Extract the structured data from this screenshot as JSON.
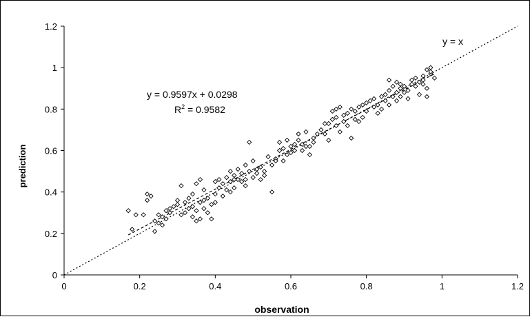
{
  "chart_data": {
    "type": "scatter",
    "xlabel": "observation",
    "ylabel": "prediction",
    "xlim": [
      0,
      1.2
    ],
    "ylim": [
      0,
      1.2
    ],
    "x_ticks": [
      "0",
      "0.2",
      "0.4",
      "0.6",
      "0.8",
      "1",
      "1.2"
    ],
    "y_ticks": [
      "0",
      "0.2",
      "0.4",
      "0.6",
      "0.8",
      "1",
      "1.2"
    ],
    "grid": false,
    "legend": "none",
    "marker": "diamond-open",
    "annotations": {
      "identity_label": "y = x",
      "regression_equation": "y = 0.9597x + 0.0298",
      "r_squared_prefix": "R",
      "r_squared_power": "2",
      "r_squared_value": " = 0.9582"
    },
    "lines": [
      {
        "kind": "identity",
        "slope": 1,
        "intercept": 0,
        "style": "dotted",
        "range": [
          0,
          1.2
        ]
      },
      {
        "kind": "regression",
        "slope": 0.9597,
        "intercept": 0.0298,
        "style": "dashed",
        "range": [
          0.17,
          0.98
        ]
      }
    ],
    "points": [
      [
        0.17,
        0.31
      ],
      [
        0.18,
        0.22
      ],
      [
        0.19,
        0.29
      ],
      [
        0.21,
        0.29
      ],
      [
        0.22,
        0.36
      ],
      [
        0.22,
        0.39
      ],
      [
        0.23,
        0.38
      ],
      [
        0.24,
        0.26
      ],
      [
        0.24,
        0.21
      ],
      [
        0.25,
        0.25
      ],
      [
        0.26,
        0.24
      ],
      [
        0.26,
        0.28
      ],
      [
        0.27,
        0.31
      ],
      [
        0.28,
        0.32
      ],
      [
        0.28,
        0.3
      ],
      [
        0.29,
        0.33
      ],
      [
        0.3,
        0.34
      ],
      [
        0.31,
        0.29
      ],
      [
        0.31,
        0.43
      ],
      [
        0.32,
        0.35
      ],
      [
        0.32,
        0.3
      ],
      [
        0.33,
        0.32
      ],
      [
        0.33,
        0.37
      ],
      [
        0.34,
        0.28
      ],
      [
        0.34,
        0.39
      ],
      [
        0.35,
        0.26
      ],
      [
        0.35,
        0.44
      ],
      [
        0.35,
        0.31
      ],
      [
        0.36,
        0.35
      ],
      [
        0.36,
        0.46
      ],
      [
        0.37,
        0.32
      ],
      [
        0.37,
        0.36
      ],
      [
        0.38,
        0.37
      ],
      [
        0.38,
        0.3
      ],
      [
        0.39,
        0.27
      ],
      [
        0.39,
        0.34
      ],
      [
        0.4,
        0.39
      ],
      [
        0.4,
        0.35
      ],
      [
        0.41,
        0.42
      ],
      [
        0.41,
        0.46
      ],
      [
        0.42,
        0.38
      ],
      [
        0.42,
        0.44
      ],
      [
        0.43,
        0.41
      ],
      [
        0.43,
        0.47
      ],
      [
        0.44,
        0.45
      ],
      [
        0.44,
        0.5
      ],
      [
        0.45,
        0.48
      ],
      [
        0.45,
        0.42
      ],
      [
        0.46,
        0.46
      ],
      [
        0.46,
        0.51
      ],
      [
        0.47,
        0.45
      ],
      [
        0.47,
        0.49
      ],
      [
        0.48,
        0.46
      ],
      [
        0.48,
        0.53
      ],
      [
        0.49,
        0.5
      ],
      [
        0.49,
        0.64
      ],
      [
        0.5,
        0.47
      ],
      [
        0.5,
        0.55
      ],
      [
        0.51,
        0.49
      ],
      [
        0.51,
        0.51
      ],
      [
        0.52,
        0.52
      ],
      [
        0.53,
        0.5
      ],
      [
        0.54,
        0.57
      ],
      [
        0.55,
        0.4
      ],
      [
        0.55,
        0.53
      ],
      [
        0.56,
        0.56
      ],
      [
        0.57,
        0.6
      ],
      [
        0.57,
        0.64
      ],
      [
        0.58,
        0.55
      ],
      [
        0.58,
        0.61
      ],
      [
        0.59,
        0.58
      ],
      [
        0.59,
        0.65
      ],
      [
        0.6,
        0.62
      ],
      [
        0.6,
        0.59
      ],
      [
        0.61,
        0.6
      ],
      [
        0.62,
        0.65
      ],
      [
        0.62,
        0.68
      ],
      [
        0.63,
        0.6
      ],
      [
        0.63,
        0.63
      ],
      [
        0.64,
        0.62
      ],
      [
        0.64,
        0.69
      ],
      [
        0.65,
        0.58
      ],
      [
        0.66,
        0.66
      ],
      [
        0.67,
        0.68
      ],
      [
        0.68,
        0.7
      ],
      [
        0.69,
        0.68
      ],
      [
        0.7,
        0.73
      ],
      [
        0.7,
        0.65
      ],
      [
        0.71,
        0.75
      ],
      [
        0.71,
        0.79
      ],
      [
        0.72,
        0.72
      ],
      [
        0.72,
        0.76
      ],
      [
        0.73,
        0.81
      ],
      [
        0.73,
        0.69
      ],
      [
        0.74,
        0.74
      ],
      [
        0.74,
        0.77
      ],
      [
        0.75,
        0.78
      ],
      [
        0.75,
        0.72
      ],
      [
        0.76,
        0.66
      ],
      [
        0.76,
        0.8
      ],
      [
        0.77,
        0.79
      ],
      [
        0.78,
        0.74
      ],
      [
        0.78,
        0.81
      ],
      [
        0.79,
        0.82
      ],
      [
        0.8,
        0.79
      ],
      [
        0.8,
        0.83
      ],
      [
        0.81,
        0.84
      ],
      [
        0.82,
        0.81
      ],
      [
        0.83,
        0.82
      ],
      [
        0.84,
        0.86
      ],
      [
        0.84,
        0.8
      ],
      [
        0.85,
        0.87
      ],
      [
        0.85,
        0.84
      ],
      [
        0.86,
        0.89
      ],
      [
        0.86,
        0.94
      ],
      [
        0.86,
        0.82
      ],
      [
        0.87,
        0.86
      ],
      [
        0.87,
        0.91
      ],
      [
        0.88,
        0.88
      ],
      [
        0.88,
        0.93
      ],
      [
        0.88,
        0.84
      ],
      [
        0.89,
        0.9
      ],
      [
        0.89,
        0.86
      ],
      [
        0.9,
        0.91
      ],
      [
        0.9,
        0.88
      ],
      [
        0.91,
        0.89
      ],
      [
        0.92,
        0.92
      ],
      [
        0.92,
        0.94
      ],
      [
        0.93,
        0.91
      ],
      [
        0.93,
        0.95
      ],
      [
        0.94,
        0.93
      ],
      [
        0.94,
        0.87
      ],
      [
        0.95,
        0.96
      ],
      [
        0.95,
        0.92
      ],
      [
        0.96,
        0.99
      ],
      [
        0.96,
        0.9
      ],
      [
        0.97,
        0.97
      ],
      [
        0.97,
        1.0
      ],
      [
        0.98,
        0.95
      ],
      [
        0.96,
        0.86
      ],
      [
        0.91,
        0.85
      ],
      [
        0.83,
        0.78
      ],
      [
        0.77,
        0.75
      ],
      [
        0.69,
        0.73
      ],
      [
        0.66,
        0.64
      ],
      [
        0.61,
        0.63
      ],
      [
        0.56,
        0.55
      ],
      [
        0.52,
        0.46
      ],
      [
        0.48,
        0.43
      ],
      [
        0.44,
        0.4
      ],
      [
        0.4,
        0.45
      ],
      [
        0.37,
        0.41
      ],
      [
        0.34,
        0.33
      ],
      [
        0.3,
        0.36
      ],
      [
        0.27,
        0.27
      ],
      [
        0.25,
        0.29
      ],
      [
        0.36,
        0.27
      ],
      [
        0.45,
        0.46
      ],
      [
        0.53,
        0.48
      ],
      [
        0.65,
        0.62
      ],
      [
        0.72,
        0.8
      ],
      [
        0.79,
        0.76
      ],
      [
        0.82,
        0.85
      ],
      [
        0.89,
        0.92
      ],
      [
        0.95,
        0.94
      ],
      [
        0.97,
        0.98
      ]
    ]
  }
}
